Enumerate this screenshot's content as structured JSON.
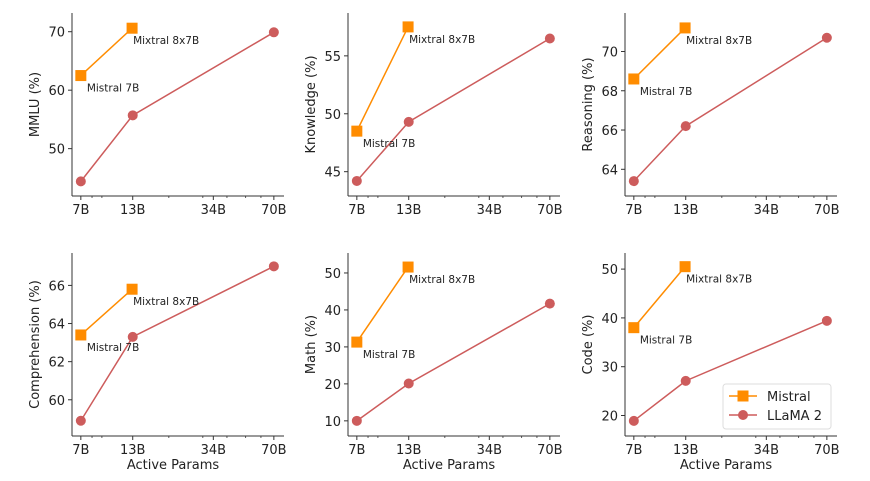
{
  "chart_data": [
    {
      "type": "line",
      "ylabel": "MMLU (%)",
      "xlabel": "",
      "xscale": "log",
      "xlim": [
        6.3,
        79
      ],
      "ylim": [
        41.9,
        73.2
      ],
      "xticks": [
        7,
        13,
        34,
        70
      ],
      "xtick_labels": [
        "7B",
        "13B",
        "34B",
        "70B"
      ],
      "yticks": [
        50,
        60,
        70
      ],
      "series": [
        {
          "name": "Mistral",
          "x": [
            7,
            12.9
          ],
          "y": [
            62.5,
            70.6
          ],
          "point_labels": [
            "Mistral 7B",
            "Mixtral 8x7B"
          ]
        },
        {
          "name": "LLaMA 2",
          "x": [
            7,
            13,
            70
          ],
          "y": [
            44.4,
            55.7,
            69.9
          ]
        }
      ]
    },
    {
      "type": "line",
      "ylabel": "Knowledge (%)",
      "xlabel": "",
      "xscale": "log",
      "xlim": [
        6.3,
        79
      ],
      "ylim": [
        42.9,
        58.7
      ],
      "xticks": [
        7,
        13,
        34,
        70
      ],
      "xtick_labels": [
        "7B",
        "13B",
        "34B",
        "70B"
      ],
      "yticks": [
        45,
        50,
        55
      ],
      "series": [
        {
          "name": "Mistral",
          "x": [
            7,
            12.9
          ],
          "y": [
            48.5,
            57.5
          ],
          "point_labels": [
            "Mistral 7B",
            "Mixtral 8x7B"
          ]
        },
        {
          "name": "LLaMA 2",
          "x": [
            7,
            13,
            70
          ],
          "y": [
            44.2,
            49.3,
            56.5
          ]
        }
      ]
    },
    {
      "type": "line",
      "ylabel": "Reasoning (%)",
      "xlabel": "",
      "xscale": "log",
      "xlim": [
        6.3,
        79
      ],
      "ylim": [
        62.64,
        71.96
      ],
      "xticks": [
        7,
        13,
        34,
        70
      ],
      "xtick_labels": [
        "7B",
        "13B",
        "34B",
        "70B"
      ],
      "yticks": [
        64,
        66,
        68,
        70
      ],
      "series": [
        {
          "name": "Mistral",
          "x": [
            7,
            12.9
          ],
          "y": [
            68.6,
            71.2
          ],
          "point_labels": [
            "Mistral 7B",
            "Mixtral 8x7B"
          ]
        },
        {
          "name": "LLaMA 2",
          "x": [
            7,
            13,
            70
          ],
          "y": [
            63.4,
            66.2,
            70.7
          ]
        }
      ]
    },
    {
      "type": "line",
      "ylabel": "Comprehension (%)",
      "xlabel": "Active Params",
      "xscale": "log",
      "xlim": [
        6.3,
        79
      ],
      "ylim": [
        58.1,
        67.7
      ],
      "xticks": [
        7,
        13,
        34,
        70
      ],
      "xtick_labels": [
        "7B",
        "13B",
        "34B",
        "70B"
      ],
      "yticks": [
        60,
        62,
        64,
        66
      ],
      "series": [
        {
          "name": "Mistral",
          "x": [
            7,
            12.9
          ],
          "y": [
            63.4,
            65.8
          ],
          "point_labels": [
            "Mistral 7B",
            "Mixtral 8x7B"
          ]
        },
        {
          "name": "LLaMA 2",
          "x": [
            7,
            13,
            70
          ],
          "y": [
            58.9,
            63.3,
            67.0
          ]
        }
      ]
    },
    {
      "type": "line",
      "ylabel": "Math (%)",
      "xlabel": "Active Params",
      "xscale": "log",
      "xlim": [
        6.3,
        79
      ],
      "ylim": [
        5.9,
        55.4
      ],
      "xticks": [
        7,
        13,
        34,
        70
      ],
      "xtick_labels": [
        "7B",
        "13B",
        "34B",
        "70B"
      ],
      "yticks": [
        10,
        20,
        30,
        40,
        50
      ],
      "series": [
        {
          "name": "Mistral",
          "x": [
            7,
            12.9
          ],
          "y": [
            31.3,
            51.6
          ],
          "point_labels": [
            "Mistral 7B",
            "Mixtral 8x7B"
          ]
        },
        {
          "name": "LLaMA 2",
          "x": [
            7,
            13,
            70
          ],
          "y": [
            10.0,
            20.1,
            41.7
          ]
        }
      ]
    },
    {
      "type": "line",
      "ylabel": "Code (%)",
      "xlabel": "Active Params",
      "xscale": "log",
      "xlim": [
        6.3,
        79
      ],
      "ylim": [
        15.8,
        53.3
      ],
      "xticks": [
        7,
        13,
        34,
        70
      ],
      "xtick_labels": [
        "7B",
        "13B",
        "34B",
        "70B"
      ],
      "yticks": [
        20,
        30,
        40,
        50
      ],
      "series": [
        {
          "name": "Mistral",
          "x": [
            7,
            12.9
          ],
          "y": [
            38.0,
            50.5
          ],
          "point_labels": [
            "Mistral 7B",
            "Mixtral 8x7B"
          ]
        },
        {
          "name": "LLaMA 2",
          "x": [
            7,
            13,
            70
          ],
          "y": [
            18.9,
            27.1,
            39.4
          ]
        }
      ],
      "legend": {
        "placement": "lower-right",
        "entries": [
          "Mistral",
          "LLaMA 2"
        ]
      }
    }
  ],
  "colors": {
    "Mistral": "#ff8c00",
    "LLaMA 2": "#cd5c5c",
    "axis": "#333333"
  },
  "markers": {
    "Mistral": "square",
    "LLaMA 2": "circle"
  },
  "grid": false
}
